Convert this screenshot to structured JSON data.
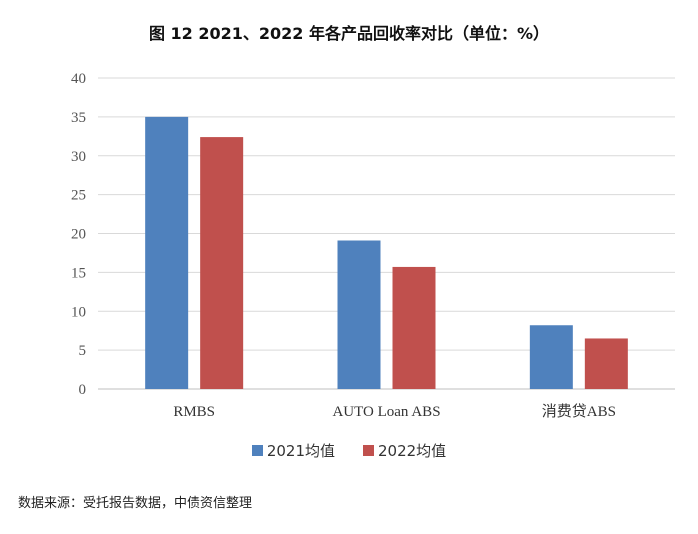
{
  "title": "图 12  2021、2022 年各产品回收率对比（单位：%）",
  "source": "数据来源：受托报告数据，中债资信整理",
  "colors": {
    "series_2021": "#4F81BD",
    "series_2022": "#C0504D",
    "grid": "#D9D9D9",
    "axis": "#BFBFBF"
  },
  "chart_data": {
    "type": "bar",
    "categories": [
      "RMBS",
      "AUTO Loan ABS",
      "消费贷ABS"
    ],
    "series": [
      {
        "name": "2021均值",
        "values": [
          35.0,
          19.1,
          8.2
        ]
      },
      {
        "name": "2022均值",
        "values": [
          32.4,
          15.7,
          6.5
        ]
      }
    ],
    "ylim": [
      0,
      40
    ],
    "yticks": [
      "0",
      "5",
      "10",
      "15",
      "20",
      "25",
      "30",
      "35",
      "40"
    ],
    "grid": true,
    "legend_position": "bottom"
  }
}
